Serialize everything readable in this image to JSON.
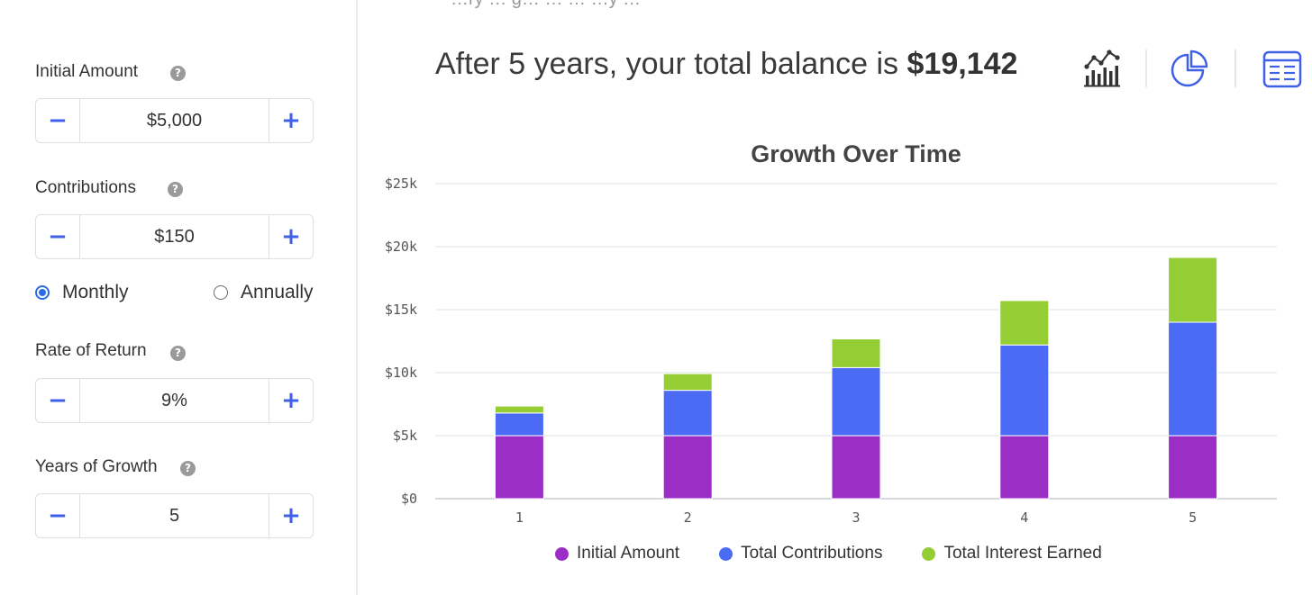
{
  "top_text": "…ry … g… … … …y …",
  "inputs": {
    "initial_amount": {
      "label": "Initial Amount",
      "value": "$5,000",
      "help": "?"
    },
    "contributions": {
      "label": "Contributions",
      "value": "$150",
      "help": "?"
    },
    "frequency": {
      "options": [
        {
          "label": "Monthly",
          "selected": true
        },
        {
          "label": "Annually",
          "selected": false
        }
      ]
    },
    "rate_of_return": {
      "label": "Rate of Return",
      "value": "9%",
      "help": "?"
    },
    "years_of_growth": {
      "label": "Years of Growth",
      "value": "5",
      "help": "?"
    },
    "minus_symbol": "−",
    "plus_symbol": "+"
  },
  "summary": {
    "prefix": "After 5 years, your total balance is",
    "amount": "$19,142"
  },
  "view_toggle": {
    "icons": [
      "bar-chart-icon",
      "pie-chart-icon",
      "table-icon"
    ],
    "accent": "#3f61e7",
    "dark": "#333333"
  },
  "chart_data": {
    "type": "bar",
    "stacked": true,
    "title": "Growth Over Time",
    "categories": [
      "1",
      "2",
      "3",
      "4",
      "5"
    ],
    "yticks": [
      "$0",
      "$5k",
      "$10k",
      "$15k",
      "$20k",
      "$25k"
    ],
    "ylim": [
      0,
      25000
    ],
    "grid": true,
    "legend_position": "bottom",
    "series": [
      {
        "name": "Initial Amount",
        "color": "#9b2fc5",
        "values": [
          5000,
          5000,
          5000,
          5000,
          5000
        ]
      },
      {
        "name": "Total Contributions",
        "color": "#4b6bf4",
        "values": [
          1800,
          3600,
          5400,
          7200,
          9000
        ]
      },
      {
        "name": "Total Interest Earned",
        "color": "#94cd34",
        "values": [
          550,
          1320,
          2280,
          3520,
          5142
        ]
      }
    ]
  }
}
